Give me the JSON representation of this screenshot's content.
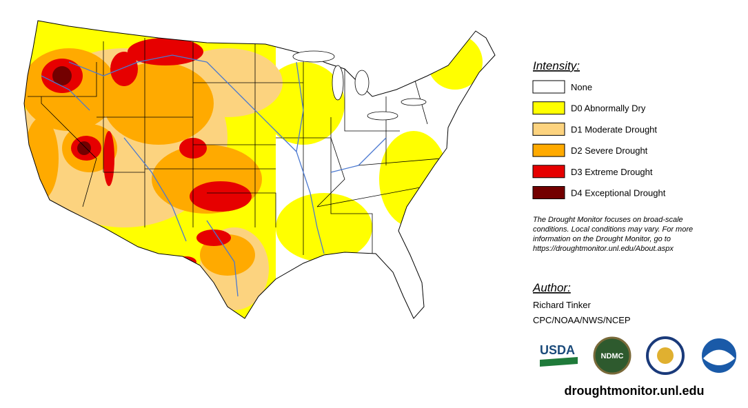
{
  "legend": {
    "title": "Intensity:",
    "items": [
      {
        "label": "None",
        "color": "#ffffff"
      },
      {
        "label": "D0 Abnormally Dry",
        "color": "#ffff00"
      },
      {
        "label": "D1 Moderate Drought",
        "color": "#fcd37f"
      },
      {
        "label": "D2 Severe Drought",
        "color": "#ffaa00"
      },
      {
        "label": "D3 Extreme Drought",
        "color": "#e60000"
      },
      {
        "label": "D4 Exceptional Drought",
        "color": "#730000"
      }
    ]
  },
  "note": [
    "The Drought Monitor focuses on broad-scale",
    "conditions. Local conditions may vary. For more",
    "information on the Drought Monitor, go to",
    "https://droughtmonitor.unl.edu/About.aspx"
  ],
  "author": {
    "title": "Author:",
    "lines": [
      "Richard Tinker",
      "CPC/NOAA/NWS/NCEP"
    ]
  },
  "logos": [
    "USDA",
    "NDMC"
  ],
  "url": "droughtmonitor.unl.edu"
}
